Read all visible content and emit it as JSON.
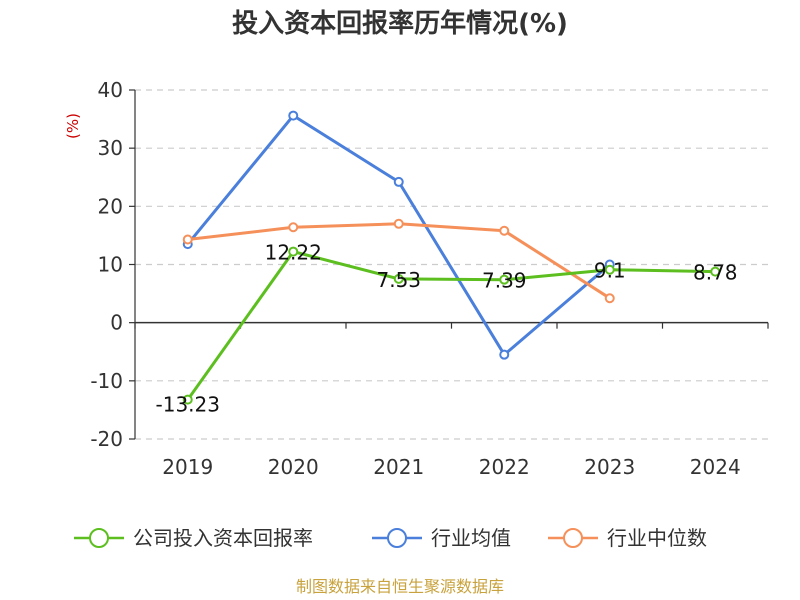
{
  "chart_data": {
    "type": "line",
    "title": "投入资本回报率历年情况(%)",
    "ylabel": "(%)",
    "categories": [
      "2019",
      "2020",
      "2021",
      "2022",
      "2023",
      "2024"
    ],
    "ylim": [
      -20,
      40
    ],
    "yticks": [
      -20,
      -10,
      0,
      10,
      20,
      30,
      40
    ],
    "grid": true,
    "legend_position": "bottom",
    "series": [
      {
        "name": "公司投入资本回报率",
        "color": "#5cbf1f",
        "values": [
          -13.23,
          12.22,
          7.53,
          7.39,
          9.1,
          8.78
        ],
        "labels": [
          "-13.23",
          "12.22",
          "7.53",
          "7.39",
          "9.1",
          "8.78"
        ]
      },
      {
        "name": "行业均值",
        "color": "#4a7fdb",
        "values": [
          13.5,
          35.6,
          24.2,
          -5.5,
          10.0,
          null
        ]
      },
      {
        "name": "行业中位数",
        "color": "#f5905a",
        "values": [
          14.3,
          16.4,
          17.0,
          15.8,
          4.2,
          null
        ]
      }
    ]
  },
  "source": "制图数据来自恒生聚源数据库"
}
